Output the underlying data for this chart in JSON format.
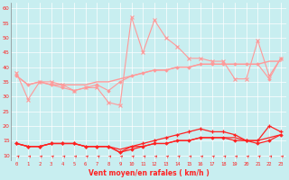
{
  "x": [
    0,
    1,
    2,
    3,
    4,
    5,
    6,
    7,
    8,
    9,
    10,
    11,
    12,
    13,
    14,
    15,
    16,
    17,
    18,
    19,
    20,
    21,
    22,
    23
  ],
  "rafales": [
    38,
    29,
    35,
    35,
    34,
    32,
    33,
    33,
    28,
    27,
    57,
    45,
    56,
    50,
    47,
    43,
    43,
    42,
    42,
    36,
    36,
    49,
    37,
    43
  ],
  "moyen_smooth": [
    37,
    34,
    35,
    34,
    34,
    34,
    34,
    35,
    35,
    36,
    37,
    38,
    39,
    39,
    40,
    40,
    41,
    41,
    41,
    41,
    41,
    41,
    42,
    42
  ],
  "moyen_dots": [
    37,
    34,
    35,
    34,
    33,
    32,
    33,
    34,
    32,
    35,
    37,
    38,
    39,
    39,
    40,
    40,
    41,
    41,
    41,
    41,
    41,
    41,
    36,
    43
  ],
  "wind_top": [
    14,
    13,
    13,
    14,
    14,
    14,
    13,
    13,
    13,
    11,
    13,
    14,
    15,
    16,
    17,
    18,
    19,
    18,
    18,
    17,
    15,
    15,
    20,
    18
  ],
  "wind_smooth": [
    14,
    13,
    13,
    14,
    14,
    14,
    13,
    13,
    13,
    12,
    13,
    13,
    14,
    14,
    15,
    15,
    16,
    16,
    16,
    16,
    15,
    15,
    16,
    17
  ],
  "wind_dots": [
    14,
    13,
    13,
    14,
    14,
    14,
    13,
    13,
    13,
    11,
    12,
    13,
    14,
    14,
    15,
    15,
    16,
    16,
    16,
    15,
    15,
    14,
    15,
    17
  ],
  "xlabel": "Vent moyen/en rafales ( km/h )",
  "bg_color": "#c8eef0",
  "grid_color": "#aadddd",
  "line_color_dark": "#ff2222",
  "line_color_light": "#ff9999",
  "ylim_min": 8,
  "ylim_max": 62,
  "yticks": [
    10,
    15,
    20,
    25,
    30,
    35,
    40,
    45,
    50,
    55,
    60
  ]
}
